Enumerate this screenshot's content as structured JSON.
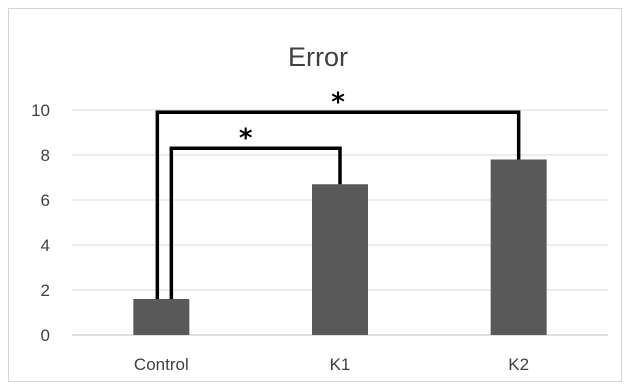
{
  "chart_data": {
    "type": "bar",
    "title": "Error",
    "categories": [
      "Control",
      "K1",
      "K2"
    ],
    "values": [
      1.6,
      6.7,
      7.8
    ],
    "ylim": [
      0,
      10
    ],
    "yticks": [
      "0",
      "2",
      "4",
      "6",
      "8",
      "10"
    ],
    "xlabel": "",
    "ylabel": "",
    "grid": true,
    "legend": "none",
    "bar_color": "#595959",
    "annotations": [
      {
        "label": "*",
        "from": "Control",
        "to": "K1",
        "level": 8.3
      },
      {
        "label": "*",
        "from": "Control",
        "to": "K2",
        "level": 9.9
      }
    ]
  }
}
